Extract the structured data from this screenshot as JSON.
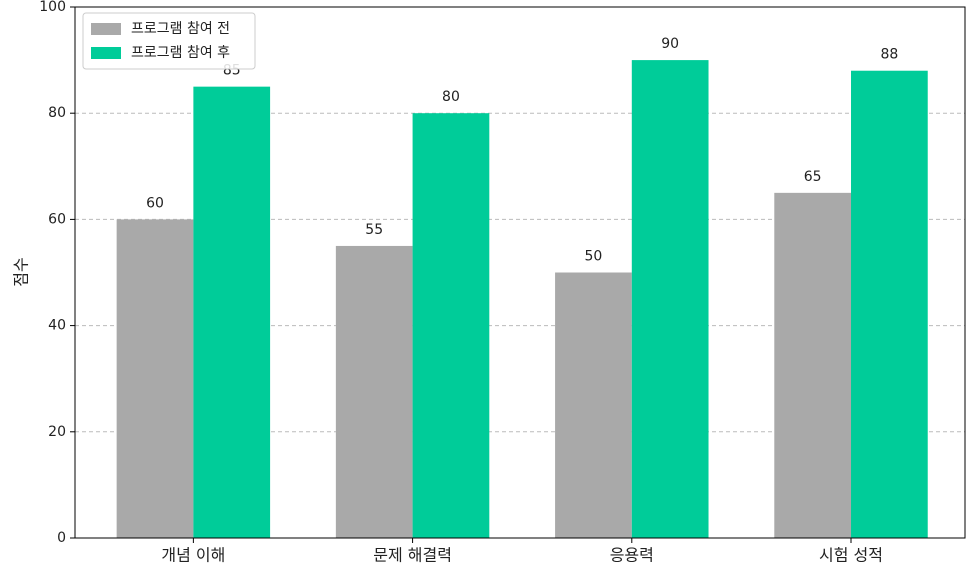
{
  "chart_data": {
    "type": "bar",
    "y_label": "점수",
    "categories": [
      "개념 이해",
      "문제 해결력",
      "응용력",
      "시험 성적"
    ],
    "series": [
      {
        "name": "프로그램 참여 전",
        "color": "#a9a9a9",
        "values": [
          60,
          55,
          50,
          65
        ]
      },
      {
        "name": "프로그램 참여 후",
        "color": "#00cc99",
        "values": [
          85,
          80,
          90,
          88
        ]
      }
    ],
    "ylim": [
      0,
      100
    ],
    "yticks": [
      0,
      20,
      40,
      60,
      80,
      100
    ],
    "grid": true,
    "legend": "upper-left"
  }
}
